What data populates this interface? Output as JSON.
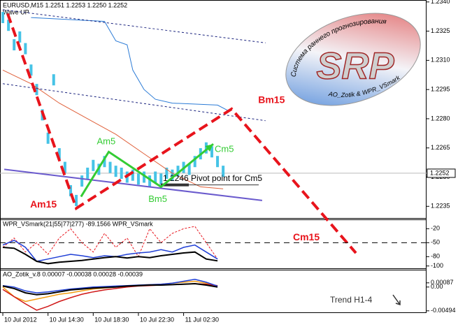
{
  "header": {
    "symbol_info": "EURUSD,M15  1.2251 1.2253 1.2250 1.2252",
    "wave": "Wave UP"
  },
  "logo": {
    "title": "SRP",
    "top_text": "Система раннего прогнозирования",
    "bottom_text": "AO_Zotik & WPR_VSmark"
  },
  "chart_data": [
    {
      "type": "line",
      "xlim": [
        -1,
        150
      ],
      "ylim": [
        1.2229,
        1.2341
      ],
      "yticks": [
        {
          "value": 1.234,
          "label": "1.2340"
        },
        1.2325,
        {
          "value": 1.231,
          "label": "1.2310"
        },
        1.2295,
        {
          "value": 1.228,
          "label": "1.2280"
        },
        1.2265,
        {
          "value": 1.225,
          "label": "1.2250"
        },
        1.2235
      ],
      "current": 1.2252,
      "pivot": {
        "value": 1.2246,
        "label": "1.2246 Pivot point for Cm5"
      },
      "series": [
        {
          "style": "bars",
          "color": "#46c3e6",
          "x": [
            0,
            2,
            4,
            6,
            8,
            10,
            12,
            14,
            16,
            18,
            20,
            22,
            24,
            26,
            28,
            30,
            32,
            34,
            36,
            38,
            40,
            42,
            44,
            46,
            48,
            50,
            52,
            54,
            56,
            58,
            60,
            62,
            64,
            66,
            68,
            70,
            72,
            74,
            76,
            78
          ],
          "values": [
            1.2332,
            1.2328,
            1.2318,
            1.2322,
            1.2316,
            1.2305,
            1.2295,
            1.2282,
            1.227,
            1.23,
            1.2262,
            1.2255,
            1.2243,
            1.2238,
            1.2248,
            1.2252,
            1.2256,
            1.2254,
            1.2258,
            1.2255,
            1.2253,
            1.2252,
            1.225,
            1.2251,
            1.2249,
            1.225,
            1.2248,
            1.225,
            1.2249,
            1.2252,
            1.2251,
            1.2253,
            1.2255,
            1.2254,
            1.2258,
            1.2262,
            1.2265,
            1.2263,
            1.2258,
            1.2253
          ]
        },
        {
          "style": "line",
          "color": "#2b7bd6",
          "x": [
            10,
            36,
            40,
            44,
            46,
            50,
            54,
            60,
            76,
            80
          ],
          "values": [
            1.2332,
            1.233,
            1.232,
            1.2318,
            1.2305,
            1.2295,
            1.229,
            1.2288,
            1.2287,
            1.2284
          ]
        },
        {
          "style": "line",
          "color": "#e0603a",
          "x": [
            0,
            10,
            20,
            30,
            40,
            50,
            60,
            70,
            78
          ],
          "values": [
            1.2305,
            1.2298,
            1.2288,
            1.228,
            1.2272,
            1.2262,
            1.2252,
            1.2245,
            1.2244
          ]
        },
        {
          "style": "line",
          "color": "#6a5acd",
          "width": 2,
          "x": [
            0.5,
            91.8
          ],
          "values": [
            1.2254,
            1.2238
          ]
        },
        {
          "style": "line",
          "color": "#1a237e",
          "dash": "3 3",
          "x": [
            0,
            93
          ],
          "values": [
            1.2336,
            1.2319
          ]
        },
        {
          "style": "line",
          "color": "#1a237e",
          "dash": "3 3",
          "x": [
            0,
            93
          ],
          "values": [
            1.2298,
            1.2279
          ]
        }
      ],
      "waves": [
        {
          "color": "#e8141c",
          "dash": "14 7",
          "width": 4,
          "x": [
            1.7,
            26,
            81,
            125
          ],
          "values": [
            1.2334,
            1.2234,
            1.2285,
            1.2211
          ],
          "labels": [
            null,
            "Am15",
            "Bm15",
            "Cm15"
          ]
        },
        {
          "color": "#33cc33",
          "width": 3,
          "x": [
            27.7,
            37.5,
            56,
            74.5
          ],
          "values": [
            1.224,
            1.2263,
            1.2245,
            1.2267
          ],
          "labels": [
            null,
            "Am5",
            "Bm5",
            "Cm5"
          ]
        }
      ]
    },
    {
      "type": "line",
      "title": "WPR_VSmark(21|55|77|277) -89.1566  WPR_VSmark",
      "xlim": [
        -1,
        150
      ],
      "ylim": [
        -105,
        0
      ],
      "yticks": [
        -20,
        -50,
        -80,
        -100
      ],
      "dashed_level": -50,
      "series": [
        {
          "style": "line",
          "color": "#e8141c",
          "dash": "3 2",
          "x": [
            0,
            4,
            8,
            12,
            16,
            20,
            24,
            28,
            32,
            36,
            40,
            44,
            48,
            52,
            56,
            60,
            64,
            68,
            72,
            76
          ],
          "values": [
            -60,
            -40,
            -70,
            -50,
            -75,
            -40,
            -20,
            -50,
            -70,
            -30,
            -60,
            -40,
            -80,
            -20,
            -50,
            -30,
            -20,
            -15,
            -50,
            -85
          ]
        },
        {
          "style": "line",
          "color": "#1f3fd6",
          "width": 1.5,
          "x": [
            0,
            4,
            8,
            12,
            16,
            20,
            24,
            28,
            32,
            36,
            40,
            44,
            48,
            52,
            56,
            60,
            64,
            68,
            72,
            76
          ],
          "values": [
            -55,
            -45,
            -60,
            -90,
            -85,
            -80,
            -75,
            -78,
            -82,
            -78,
            -80,
            -75,
            -72,
            -70,
            -65,
            -70,
            -60,
            -55,
            -70,
            -85
          ]
        },
        {
          "style": "line",
          "color": "#000000",
          "width": 2,
          "x": [
            0,
            4,
            8,
            12,
            16,
            20,
            24,
            28,
            32,
            36,
            40,
            44,
            48,
            52,
            56,
            60,
            64,
            68,
            72,
            76
          ],
          "values": [
            -60,
            -62,
            -75,
            -90,
            -95,
            -92,
            -90,
            -88,
            -85,
            -82,
            -80,
            -83,
            -80,
            -82,
            -78,
            -75,
            -72,
            -70,
            -85,
            -89
          ]
        }
      ]
    },
    {
      "type": "line",
      "title": "AO_Zotik_v.8 0.00007 -0.00038 0.00028 -0.00039",
      "xlim": [
        -1,
        150
      ],
      "ylim": [
        -0.0054,
        0.0036
      ],
      "yticks": [
        0.00087,
        {
          "value": 0,
          "label": "0.00"
        },
        -0.00494
      ],
      "xticks": [
        {
          "value": 0,
          "label": "10 Jul 2012"
        },
        {
          "value": 16,
          "label": "10 Jul 14:30"
        },
        {
          "value": 32,
          "label": "10 Jul 18:30"
        },
        {
          "value": 48,
          "label": "10 Jul 22:30"
        },
        {
          "value": 64,
          "label": "11 Jul 02:30"
        }
      ],
      "annotation": "Trend H1-4",
      "series": [
        {
          "style": "line",
          "color": "#f39c12",
          "width": 1.5,
          "x": [
            0,
            4,
            8,
            12,
            16,
            20,
            24,
            28,
            32,
            36,
            40,
            44,
            48,
            52,
            56,
            60,
            64,
            68,
            72,
            76
          ],
          "values": [
            0,
            -0.002,
            -0.003,
            -0.0025,
            -0.002,
            -0.0015,
            -0.0012,
            -0.0008,
            -0.0004,
            -0.0002,
            0,
            0.0002,
            0.0004,
            0.0005,
            0.0006,
            0.0008,
            0.001,
            0.0012,
            0.0008,
            0.0002
          ]
        },
        {
          "style": "line",
          "color": "#d01818",
          "width": 1.5,
          "x": [
            0,
            4,
            8,
            12,
            16,
            20,
            24,
            28,
            32,
            36,
            40,
            44,
            48,
            52,
            56,
            60,
            64,
            68,
            72,
            76
          ],
          "values": [
            -0.0005,
            -0.002,
            -0.0035,
            -0.0048,
            -0.004,
            -0.003,
            -0.0022,
            -0.0015,
            -0.001,
            -0.0006,
            -0.0003,
            0,
            0.0002,
            0.0003,
            0.0004,
            0.0005,
            0.0006,
            0.0007,
            0.0006,
            0.0003
          ]
        },
        {
          "style": "line",
          "color": "#1f3fd6",
          "width": 1.5,
          "x": [
            0,
            4,
            8,
            12,
            16,
            20,
            24,
            28,
            32,
            36,
            40,
            44,
            48,
            52,
            56,
            60,
            64,
            68,
            72,
            76
          ],
          "values": [
            0.0003,
            0,
            -0.0008,
            -0.0012,
            -0.001,
            -0.0007,
            -0.0004,
            -0.0002,
            0,
            0.0001,
            0.0002,
            0.0003,
            0.0004,
            0.0005,
            0.0006,
            0.0008,
            0.0012,
            0.0016,
            0.001,
            0.0002
          ]
        },
        {
          "style": "line",
          "color": "#000000",
          "width": 2,
          "x": [
            0,
            4,
            8,
            12,
            16,
            20,
            24,
            28,
            32,
            36,
            40,
            44,
            48,
            52,
            56,
            60,
            64,
            68,
            72,
            76
          ],
          "values": [
            0.0002,
            -0.0003,
            -0.0012,
            -0.0016,
            -0.0014,
            -0.001,
            -0.0006,
            -0.0004,
            -0.0002,
            -0.0001,
            0,
            0.0002,
            0.0003,
            0.0004,
            0.0004,
            0.0005,
            0.0006,
            0.0007,
            0.0004,
            0
          ]
        }
      ]
    }
  ]
}
